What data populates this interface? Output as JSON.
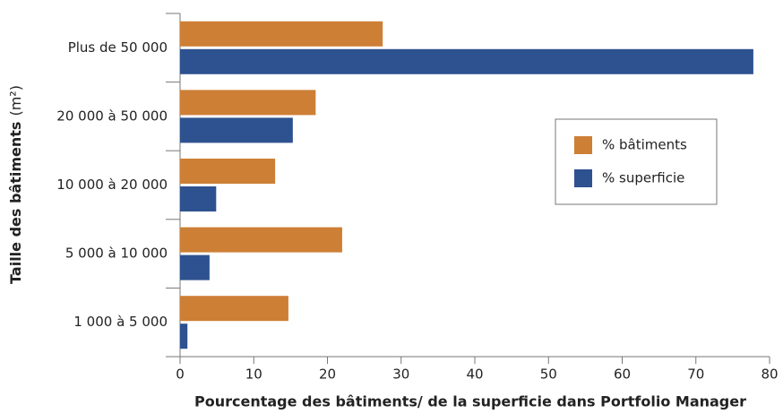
{
  "chart_data": {
    "type": "hbar",
    "xlabel": "Pourcentage des bâtiments/ de la superficie dans Portfolio Manager",
    "ylabel": "Taille des bâtiments",
    "ylabel_unit": "(m²)",
    "categories": [
      "Plus de 50 000",
      "20 000 à 50 000",
      "10 000 à 20 000",
      "5 000 à 10 000",
      "1 000 à 5 000"
    ],
    "series": [
      {
        "name": "% bâtiments",
        "color": "#cd7f35",
        "values": [
          27.5,
          18.4,
          12.9,
          22.0,
          14.7
        ]
      },
      {
        "name": "% superficie",
        "color": "#2e5290",
        "values": [
          77.8,
          15.3,
          4.9,
          4.0,
          1.0
        ]
      }
    ],
    "xlim": [
      0,
      80
    ],
    "xticks": [
      0,
      10,
      20,
      30,
      40,
      50,
      60,
      70,
      80
    ],
    "grid": false,
    "legend": "right"
  }
}
